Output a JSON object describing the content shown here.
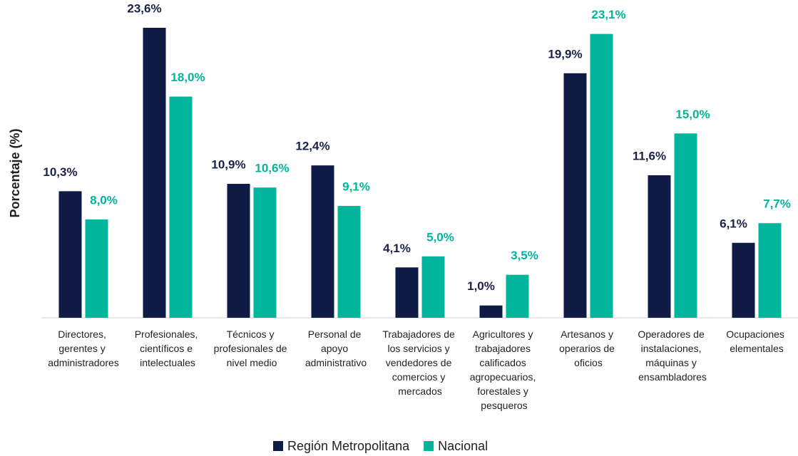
{
  "chart_data": {
    "type": "bar",
    "y_label": "Porcentaje (%)",
    "categories": [
      "Directores, gerentes y administradores",
      "Profesionales, científicos e intelectuales",
      "Técnicos y profesionales de nivel medio",
      "Personal de apoyo administrativo",
      "Trabajadores de los servicios y vendedores de comercios y mercados",
      "Agricultores y trabajadores calificados agropecuarios, forestales y pesqueros",
      "Artesanos y operarios de oficios",
      "Operadores de instalaciones, máquinas y ensambladores",
      "Ocupaciones elementales"
    ],
    "series": [
      {
        "name": "Región Metropolitana",
        "color": "#0f1a45",
        "values": [
          10.3,
          23.6,
          10.9,
          12.4,
          4.1,
          1.0,
          19.9,
          11.6,
          6.1
        ],
        "value_labels": [
          "10,3%",
          "23,6%",
          "10,9%",
          "12,4%",
          "4,1%",
          "1,0%",
          "19,9%",
          "11,6%",
          "6,1%"
        ]
      },
      {
        "name": "Nacional",
        "color": "#00b59c",
        "values": [
          8.0,
          18.0,
          10.6,
          9.1,
          5.0,
          3.5,
          23.1,
          15.0,
          7.7
        ],
        "value_labels": [
          "8,0%",
          "18,0%",
          "10,6%",
          "9,1%",
          "5,0%",
          "3,5%",
          "23,1%",
          "15,0%",
          "7,7%"
        ]
      }
    ]
  }
}
